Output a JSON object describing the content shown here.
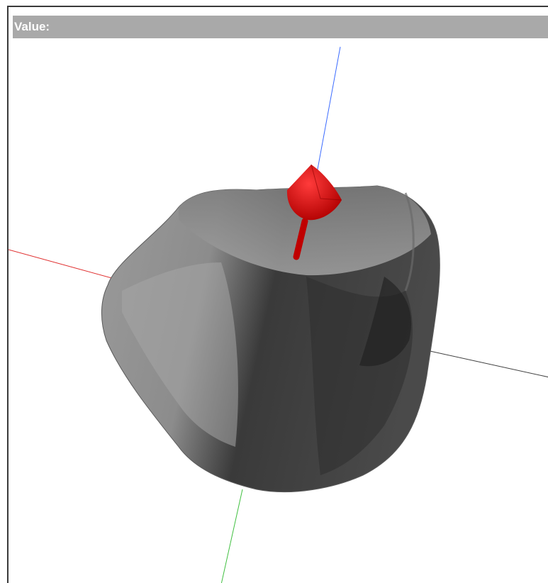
{
  "viewer": {
    "title": "Value:",
    "colors": {
      "title_bar": "#a9a9a9",
      "x_axis": "#e03030",
      "y_axis": "#3b6bff",
      "z_axis": "#40c040",
      "marker": "#e00000",
      "object": "#6b6b6b"
    },
    "icons": [
      "3d-rock-model",
      "red-direction-arrow"
    ]
  }
}
